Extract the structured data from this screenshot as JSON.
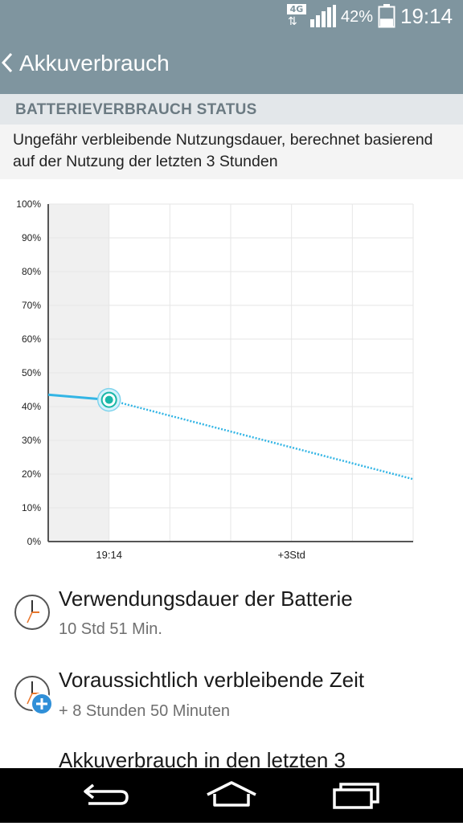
{
  "status_bar": {
    "network": "4G",
    "battery_percent": "42%",
    "battery_level": 0.42,
    "time": "19:14"
  },
  "app_bar": {
    "title": "Akkuverbrauch"
  },
  "section": {
    "header": "BATTERIEVERBRAUCH STATUS",
    "description": "Ungefähr verbleibende Nutzungsdauer, berechnet basierend auf der Nutzung der letzten 3 Stunden"
  },
  "chart_data": {
    "type": "line",
    "y_tick_labels": [
      "100%",
      "90%",
      "80%",
      "70%",
      "60%",
      "50%",
      "40%",
      "30%",
      "20%",
      "10%",
      "0%"
    ],
    "x_tick_labels": [
      "19:14",
      "+3Std"
    ],
    "ylim": [
      0,
      100
    ],
    "xlim": [
      -1,
      5
    ],
    "grid": true,
    "series": [
      {
        "style": "solid",
        "color": "#33b5e5",
        "x": [
          -1,
          0
        ],
        "y": [
          43.5,
          42
        ]
      },
      {
        "style": "dotted",
        "color": "#33b5e5",
        "x": [
          0,
          5
        ],
        "y": [
          42,
          18.5
        ]
      }
    ],
    "current_marker": {
      "x": 0,
      "y": 42
    }
  },
  "items": [
    {
      "title": "Verwendungsdauer der Batterie",
      "value": "10 Std 51 Min."
    },
    {
      "title": "Voraussichtlich verbleibende Zeit",
      "value": "+ 8 Stunden 50 Minuten"
    },
    {
      "title": "Akkuverbrauch in den letzten 3"
    }
  ],
  "colors": {
    "header_bg": "#7f959f",
    "accent": "#33b5e5",
    "section_header_bg": "#e3e7ea"
  },
  "icons": {
    "back": "chevron-left-icon",
    "home": "home-icon",
    "recents": "recents-icon",
    "nav_back": "return-arrow-icon",
    "clock": "clock-icon",
    "add": "plus-circle-icon"
  }
}
